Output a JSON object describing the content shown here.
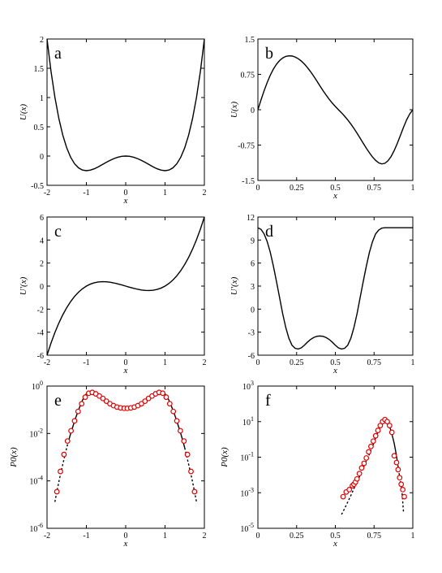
{
  "chart_data": [
    {
      "id": "a",
      "type": "line",
      "letter": "a",
      "ylabel": "U(x)",
      "xlabel": "x",
      "xlim": [
        -2,
        2
      ],
      "ylim": [
        -0.5,
        2
      ],
      "xticks": [
        -2,
        -1,
        0,
        1,
        2
      ],
      "xtick_labels": [
        "-2",
        "-1",
        "0",
        "1",
        "2"
      ],
      "yticks": [
        -0.5,
        0,
        0.5,
        1,
        1.5,
        2
      ],
      "ytick_labels": [
        "-0.5",
        "0",
        "0.5",
        "1",
        "1.5",
        "2"
      ],
      "series": [
        {
          "x": [
            -2,
            -1.9,
            -1.8,
            -1.7,
            -1.6,
            -1.5,
            -1.4,
            -1.3,
            -1.2,
            -1.1,
            -1,
            -0.9,
            -0.8,
            -0.7,
            -0.6,
            -0.5,
            -0.4,
            -0.3,
            -0.2,
            -0.1,
            0,
            0.1,
            0.2,
            0.3,
            0.4,
            0.5,
            0.6,
            0.7,
            0.8,
            0.9,
            1,
            1.1,
            1.2,
            1.3,
            1.4,
            1.5,
            1.6,
            1.7,
            1.8,
            1.9,
            2
          ],
          "y": [
            2,
            1.453,
            1.004,
            0.643,
            0.358,
            0.141,
            -0.02,
            -0.131,
            -0.202,
            -0.239,
            -0.25,
            -0.241,
            -0.218,
            -0.185,
            -0.148,
            -0.109,
            -0.074,
            -0.043,
            -0.02,
            -0.005,
            0,
            -0.005,
            -0.02,
            -0.043,
            -0.074,
            -0.109,
            -0.148,
            -0.185,
            -0.218,
            -0.241,
            -0.25,
            -0.239,
            -0.202,
            -0.131,
            -0.02,
            0.141,
            0.358,
            0.643,
            1.004,
            1.453,
            2
          ]
        }
      ]
    },
    {
      "id": "b",
      "type": "line",
      "letter": "b",
      "ylabel": "U(x)",
      "xlabel": "x",
      "xlim": [
        0,
        1
      ],
      "ylim": [
        -1.5,
        1.5
      ],
      "xticks": [
        0,
        0.25,
        0.5,
        0.75,
        1
      ],
      "xtick_labels": [
        "0",
        "0.25",
        "0.5",
        "0.75",
        "1"
      ],
      "yticks": [
        -1.5,
        -0.75,
        0,
        0.75,
        1.5
      ],
      "ytick_labels": [
        "-1.5",
        "-0.75",
        "0",
        "0.75",
        "1.5"
      ],
      "series": [
        {
          "x": [
            0,
            0.02,
            0.04,
            0.06,
            0.08,
            0.1,
            0.12,
            0.14,
            0.16,
            0.18,
            0.2,
            0.22,
            0.24,
            0.26,
            0.28,
            0.3,
            0.32,
            0.34,
            0.36,
            0.38,
            0.4,
            0.42,
            0.44,
            0.46,
            0.48,
            0.5,
            0.52,
            0.54,
            0.56,
            0.58,
            0.6,
            0.62,
            0.64,
            0.66,
            0.68,
            0.7,
            0.72,
            0.74,
            0.76,
            0.78,
            0.8,
            0.82,
            0.84,
            0.86,
            0.88,
            0.9,
            0.92,
            0.94,
            0.96,
            0.98,
            1.0
          ],
          "y": [
            0,
            0.207,
            0.402,
            0.578,
            0.733,
            0.862,
            0.965,
            1.043,
            1.098,
            1.131,
            1.144,
            1.14,
            1.119,
            1.083,
            1.033,
            0.97,
            0.894,
            0.808,
            0.713,
            0.612,
            0.509,
            0.408,
            0.313,
            0.224,
            0.142,
            0.069,
            0.0,
            -0.066,
            -0.138,
            -0.217,
            -0.303,
            -0.397,
            -0.498,
            -0.604,
            -0.711,
            -0.816,
            -0.914,
            -1.003,
            -1.075,
            -1.127,
            -1.15,
            -1.136,
            -1.083,
            -0.991,
            -0.866,
            -0.714,
            -0.546,
            -0.372,
            -0.216,
            -0.09,
            0
          ]
        }
      ]
    },
    {
      "id": "c",
      "type": "line",
      "letter": "c",
      "ylabel": "U'(x)",
      "xlabel": "x",
      "xlim": [
        -2,
        2
      ],
      "ylim": [
        -6,
        6
      ],
      "xticks": [
        -2,
        -1,
        0,
        1,
        2
      ],
      "xtick_labels": [
        "-2",
        "-1",
        "0",
        "1",
        "2"
      ],
      "yticks": [
        -6,
        -4,
        -2,
        0,
        2,
        4,
        6
      ],
      "ytick_labels": [
        "-6",
        "-4",
        "-2",
        "0",
        "2",
        "4",
        "6"
      ],
      "series": [
        {
          "x": [
            -2,
            -1.9,
            -1.8,
            -1.7,
            -1.6,
            -1.5,
            -1.4,
            -1.3,
            -1.2,
            -1.1,
            -1,
            -0.9,
            -0.8,
            -0.7,
            -0.6,
            -0.5,
            -0.4,
            -0.3,
            -0.2,
            -0.1,
            0,
            0.1,
            0.2,
            0.3,
            0.4,
            0.5,
            0.6,
            0.7,
            0.8,
            0.9,
            1,
            1.1,
            1.2,
            1.3,
            1.4,
            1.5,
            1.6,
            1.7,
            1.8,
            1.9,
            2
          ],
          "y": [
            -6,
            -4.959,
            -4.032,
            -3.213,
            -2.496,
            -1.875,
            -1.344,
            -0.897,
            -0.528,
            -0.231,
            0,
            0.171,
            0.288,
            0.357,
            0.384,
            0.375,
            0.336,
            0.273,
            0.192,
            0.099,
            0,
            -0.099,
            -0.192,
            -0.273,
            -0.336,
            -0.375,
            -0.384,
            -0.357,
            -0.288,
            -0.171,
            0,
            0.231,
            0.528,
            0.897,
            1.344,
            1.875,
            2.496,
            3.213,
            4.032,
            4.959,
            6
          ]
        }
      ]
    },
    {
      "id": "d",
      "type": "line",
      "letter": "d",
      "ylabel": "U'(x)",
      "xlabel": "x",
      "xlim": [
        0,
        1
      ],
      "ylim": [
        -6,
        12
      ],
      "xticks": [
        0,
        0.25,
        0.5,
        0.75,
        1
      ],
      "xtick_labels": [
        "0",
        "0.25",
        "0.5",
        "0.75",
        "1"
      ],
      "yticks": [
        -6,
        -3,
        0,
        3,
        6,
        9,
        12
      ],
      "ytick_labels": [
        "-6",
        "-3",
        "0",
        "3",
        "6",
        "9",
        "12"
      ],
      "series": [
        {
          "x": [
            0,
            0.02,
            0.04,
            0.06,
            0.08,
            0.1,
            0.12,
            0.14,
            0.16,
            0.18,
            0.2,
            0.22,
            0.24,
            0.26,
            0.28,
            0.3,
            0.32,
            0.34,
            0.36,
            0.38,
            0.4,
            0.42,
            0.44,
            0.46,
            0.48,
            0.5,
            0.52,
            0.54,
            0.56,
            0.58,
            0.6,
            0.62,
            0.64,
            0.66,
            0.68,
            0.7,
            0.72,
            0.74,
            0.76,
            0.78,
            0.8,
            0.82,
            0.84,
            0.86,
            0.88,
            0.9,
            0.92,
            0.94,
            0.96,
            0.98,
            1.0
          ],
          "y": [
            10.6,
            10.4,
            9.8,
            8.8,
            7.4,
            5.6,
            3.6,
            1.5,
            -0.6,
            -2.4,
            -3.8,
            -4.7,
            -5.1,
            -5.2,
            -5.05,
            -4.7,
            -4.3,
            -3.95,
            -3.7,
            -3.55,
            -3.5,
            -3.55,
            -3.7,
            -3.95,
            -4.3,
            -4.7,
            -5.05,
            -5.2,
            -5.1,
            -4.7,
            -3.8,
            -2.4,
            -0.6,
            1.5,
            3.6,
            5.6,
            7.4,
            8.8,
            9.8,
            10.3,
            10.55,
            10.6,
            10.6,
            10.6,
            10.6,
            10.6,
            10.6,
            10.6,
            10.6,
            10.6,
            10.6
          ]
        }
      ]
    },
    {
      "id": "e",
      "type": "scatter",
      "letter": "e",
      "yscale": "log",
      "ylabel": "P0(x)",
      "xlabel": "x",
      "xlim": [
        -2,
        2
      ],
      "ylim_exp": [
        -6,
        0
      ],
      "xticks": [
        -2,
        -1,
        0,
        1,
        2
      ],
      "xtick_labels": [
        "-2",
        "-1",
        "0",
        "1",
        "2"
      ],
      "yticks_exp": [
        -6,
        -4,
        -2,
        0
      ],
      "ytick_base": "10",
      "ytick_exponents": [
        "-6",
        "-4",
        "-2",
        "0"
      ],
      "series": [
        {
          "style": "line",
          "x": [
            -1.8,
            -1.75,
            -1.7,
            -1.65,
            -1.6,
            -1.55,
            -1.5,
            -1.45,
            -1.4,
            -1.35,
            -1.3,
            -1.25,
            -1.2,
            -1.15,
            -1.1,
            -1.05,
            -1.0,
            -0.95,
            -0.9,
            -0.85,
            -0.8,
            -0.7,
            -0.6,
            -0.5,
            -0.4,
            -0.3,
            -0.2,
            -0.1,
            0,
            0.1,
            0.2,
            0.3,
            0.4,
            0.5,
            0.6,
            0.7,
            0.8,
            0.85,
            0.9,
            0.95,
            1.0,
            1.05,
            1.1,
            1.15,
            1.2,
            1.25,
            1.3,
            1.35,
            1.4,
            1.45,
            1.5,
            1.55,
            1.6,
            1.65,
            1.7,
            1.75,
            1.8
          ],
          "y": [
            1.3e-05,
            3.5e-05,
            9e-05,
            0.00022,
            0.0005,
            0.0011,
            0.0025,
            0.005,
            0.0098,
            0.018,
            0.033,
            0.058,
            0.097,
            0.16,
            0.25,
            0.36,
            0.47,
            0.53,
            0.55,
            0.53,
            0.48,
            0.38,
            0.28,
            0.21,
            0.165,
            0.14,
            0.125,
            0.117,
            0.115,
            0.117,
            0.125,
            0.14,
            0.165,
            0.21,
            0.28,
            0.38,
            0.48,
            0.53,
            0.55,
            0.53,
            0.47,
            0.36,
            0.25,
            0.16,
            0.097,
            0.058,
            0.033,
            0.018,
            0.0098,
            0.005,
            0.0025,
            0.0011,
            0.0005,
            0.00022,
            9e-05,
            3.5e-05,
            1.3e-05
          ]
        },
        {
          "style": "markers",
          "x": [
            -1.75,
            -1.66,
            -1.57,
            -1.48,
            -1.39,
            -1.3,
            -1.21,
            -1.12,
            -1.03,
            -0.94,
            -0.85,
            -0.76,
            -0.67,
            -0.58,
            -0.49,
            -0.4,
            -0.31,
            -0.22,
            -0.13,
            -0.04,
            0.04,
            0.13,
            0.22,
            0.31,
            0.4,
            0.49,
            0.58,
            0.67,
            0.76,
            0.85,
            0.94,
            1.03,
            1.12,
            1.21,
            1.3,
            1.39,
            1.48,
            1.57,
            1.66,
            1.75
          ],
          "y": [
            3.5e-05,
            0.00025,
            0.0013,
            0.0048,
            0.013,
            0.034,
            0.085,
            0.18,
            0.34,
            0.5,
            0.54,
            0.47,
            0.38,
            0.3,
            0.23,
            0.18,
            0.15,
            0.13,
            0.12,
            0.115,
            0.115,
            0.12,
            0.13,
            0.15,
            0.18,
            0.23,
            0.3,
            0.38,
            0.47,
            0.54,
            0.5,
            0.34,
            0.18,
            0.085,
            0.034,
            0.013,
            0.0048,
            0.0013,
            0.00025,
            3.5e-05
          ]
        }
      ]
    },
    {
      "id": "f",
      "type": "scatter",
      "letter": "f",
      "yscale": "log",
      "ylabel": "P0(x)",
      "xlabel": "x",
      "xlim": [
        0,
        1
      ],
      "ylim_exp": [
        -5,
        3
      ],
      "xticks": [
        0,
        0.25,
        0.5,
        0.75,
        1
      ],
      "xtick_labels": [
        "0",
        "0.25",
        "0.5",
        "0.75",
        "1"
      ],
      "yticks_exp": [
        -5,
        -3,
        -1,
        1,
        3
      ],
      "ytick_base": "10",
      "ytick_exponents": [
        "-5",
        "-3",
        "-1",
        "1",
        "3"
      ],
      "series": [
        {
          "style": "line",
          "x": [
            0.54,
            0.56,
            0.58,
            0.6,
            0.62,
            0.64,
            0.66,
            0.68,
            0.7,
            0.72,
            0.74,
            0.76,
            0.78,
            0.8,
            0.82,
            0.84,
            0.86,
            0.88,
            0.89,
            0.9,
            0.91,
            0.92,
            0.93,
            0.94
          ],
          "y": [
            6e-05,
            0.00013,
            0.0003,
            0.0007,
            0.0017,
            0.004,
            0.01,
            0.025,
            0.06,
            0.15,
            0.4,
            1.2,
            3.5,
            9,
            12,
            9,
            3,
            0.6,
            0.2,
            0.06,
            0.015,
            0.004,
            0.0012,
            8e-05
          ]
        },
        {
          "style": "markers",
          "x": [
            0.55,
            0.57,
            0.59,
            0.61,
            0.62,
            0.63,
            0.64,
            0.655,
            0.67,
            0.685,
            0.7,
            0.715,
            0.73,
            0.745,
            0.76,
            0.775,
            0.79,
            0.805,
            0.82,
            0.835,
            0.85,
            0.865,
            0.88,
            0.895,
            0.905,
            0.915,
            0.925,
            0.935,
            0.945
          ],
          "y": [
            0.0006,
            0.0011,
            0.0015,
            0.0025,
            0.003,
            0.004,
            0.006,
            0.012,
            0.025,
            0.045,
            0.09,
            0.2,
            0.4,
            0.8,
            1.6,
            3.2,
            6,
            10,
            13,
            10,
            6,
            2.5,
            0.12,
            0.05,
            0.02,
            0.007,
            0.003,
            0.0015,
            0.0006
          ]
        }
      ]
    }
  ]
}
